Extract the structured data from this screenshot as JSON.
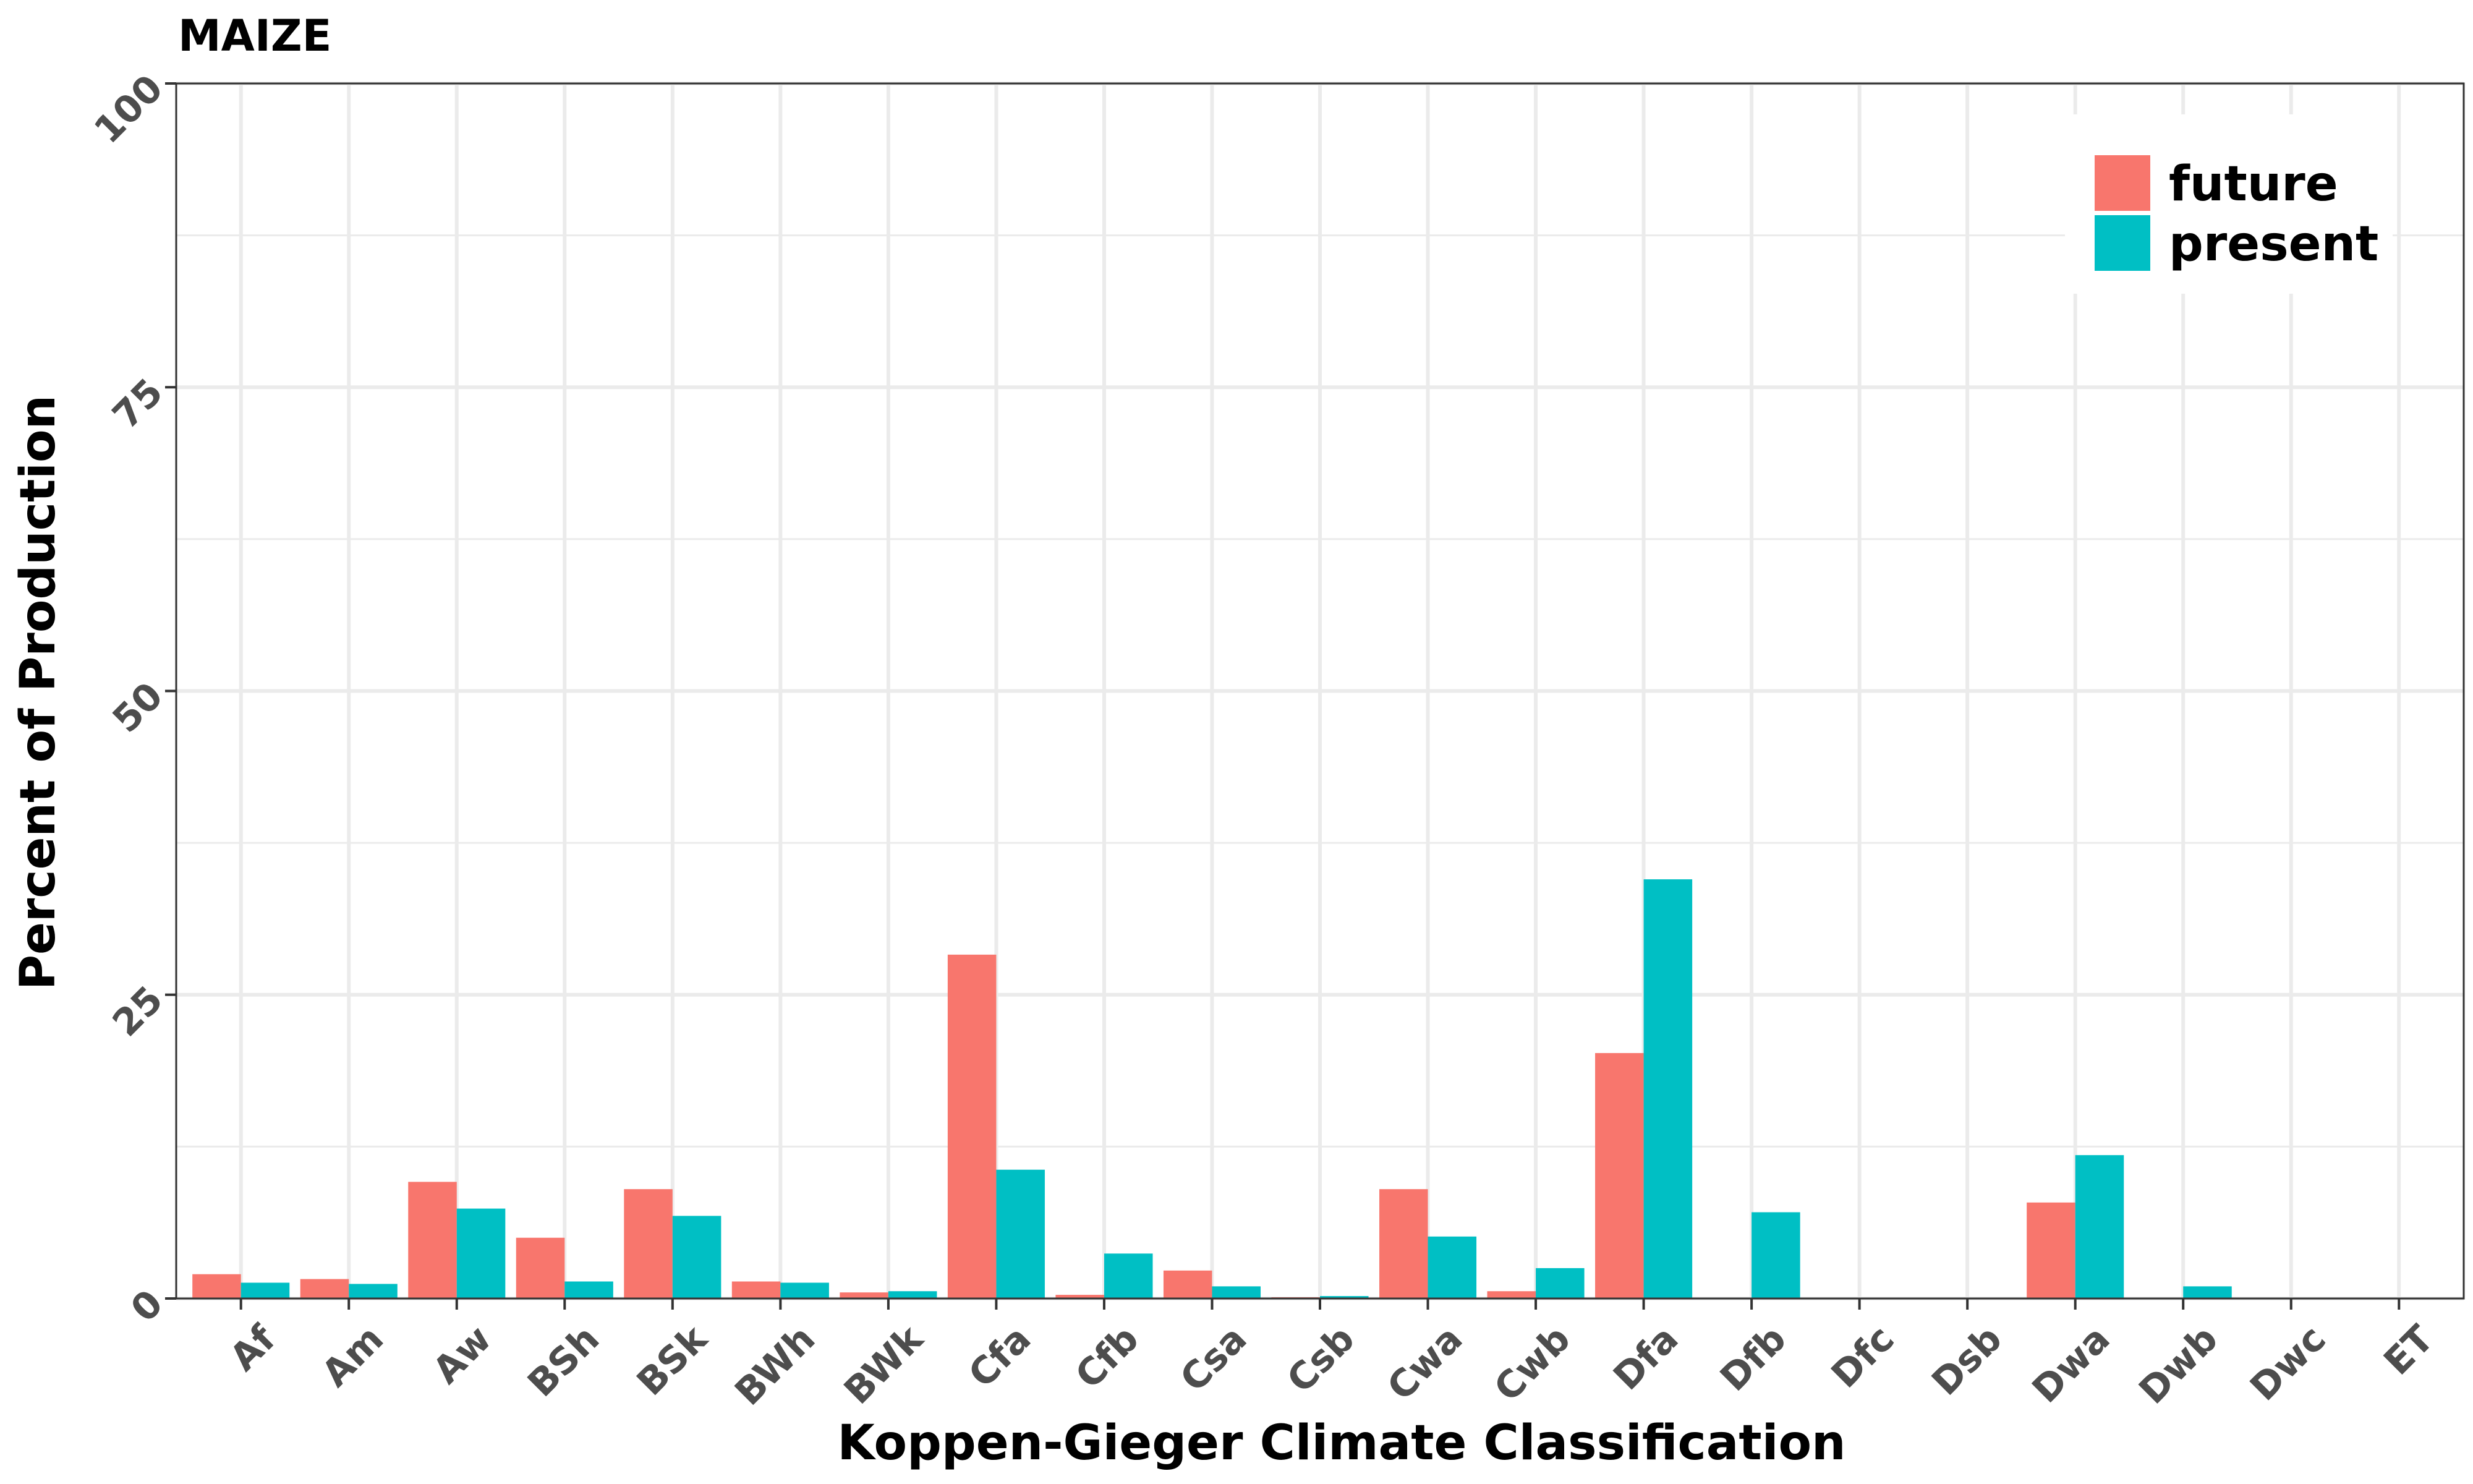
{
  "chart_data": {
    "type": "bar",
    "title": "MAIZE",
    "xlabel": "Koppen-Gieger Climate Classification",
    "ylabel": "Percent of Production",
    "ylim": [
      0,
      100
    ],
    "yticks": [
      0,
      25,
      50,
      75,
      100
    ],
    "grid": true,
    "legend_position": "top-right",
    "categories": [
      "Af",
      "Am",
      "Aw",
      "BSh",
      "BSk",
      "BWh",
      "BWk",
      "Cfa",
      "Cfb",
      "Csa",
      "Csb",
      "Cwa",
      "Cwb",
      "Dfa",
      "Dfb",
      "Dfc",
      "Dsb",
      "Dwa",
      "Dwb",
      "Dwc",
      "ET"
    ],
    "series": [
      {
        "name": "future",
        "color": "#F8766D",
        "values": [
          2.0,
          1.6,
          9.6,
          5.0,
          9.0,
          1.4,
          0.5,
          28.3,
          0.3,
          2.3,
          0.1,
          9.0,
          0.6,
          20.2,
          0.0,
          0.0,
          0.0,
          7.9,
          0.0,
          0.0,
          0.0
        ]
      },
      {
        "name": "present",
        "color": "#00BFC4",
        "values": [
          1.3,
          1.2,
          7.4,
          1.4,
          6.8,
          1.3,
          0.6,
          10.6,
          3.7,
          1.0,
          0.2,
          5.1,
          2.5,
          34.5,
          7.1,
          0.0,
          0.0,
          11.8,
          1.0,
          0.0,
          0.0
        ]
      }
    ]
  }
}
